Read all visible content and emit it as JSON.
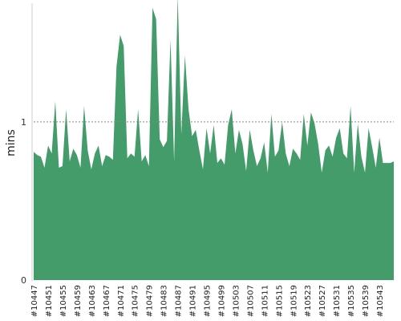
{
  "chart_data": {
    "type": "area",
    "xlabel": "",
    "ylabel": "mins",
    "ylim": [
      0,
      1.75
    ],
    "yticks": [
      0,
      1
    ],
    "reference_line": 1,
    "color": "#449c6a",
    "reference_line_color": "#888888",
    "x": [
      "#10447",
      "#10448",
      "#10449",
      "#10450",
      "#10451",
      "#10452",
      "#10453",
      "#10454",
      "#10455",
      "#10456",
      "#10457",
      "#10458",
      "#10459",
      "#10460",
      "#10461",
      "#10462",
      "#10463",
      "#10464",
      "#10465",
      "#10466",
      "#10467",
      "#10468",
      "#10469",
      "#10470",
      "#10471",
      "#10472",
      "#10473",
      "#10474",
      "#10475",
      "#10476",
      "#10477",
      "#10478",
      "#10479",
      "#10480",
      "#10481",
      "#10482",
      "#10483",
      "#10484",
      "#10485",
      "#10486",
      "#10487",
      "#10488",
      "#10489",
      "#10490",
      "#10491",
      "#10492",
      "#10493",
      "#10494",
      "#10495",
      "#10496",
      "#10497",
      "#10498",
      "#10499",
      "#10500",
      "#10501",
      "#10502",
      "#10503",
      "#10504",
      "#10505",
      "#10506",
      "#10507",
      "#10508",
      "#10509",
      "#10510",
      "#10511",
      "#10512",
      "#10513",
      "#10514",
      "#10515",
      "#10516",
      "#10517",
      "#10518",
      "#10519",
      "#10520",
      "#10521",
      "#10522",
      "#10523",
      "#10524",
      "#10525",
      "#10526",
      "#10527",
      "#10528",
      "#10529",
      "#10530",
      "#10531",
      "#10532",
      "#10533",
      "#10534",
      "#10535",
      "#10536",
      "#10537",
      "#10538",
      "#10539",
      "#10540",
      "#10541",
      "#10542",
      "#10543",
      "#10544",
      "#10545",
      "#10546",
      "#10547"
    ],
    "x_tick_labels": [
      "#10447",
      "#10451",
      "#10455",
      "#10459",
      "#10463",
      "#10467",
      "#10471",
      "#10475",
      "#10479",
      "#10483",
      "#10487",
      "#10491",
      "#10495",
      "#10499",
      "#10503",
      "#10507",
      "#10511",
      "#10515",
      "#10519",
      "#10523",
      "#10527",
      "#10531",
      "#10535",
      "#10539",
      "#10543"
    ],
    "values": [
      0.81,
      0.79,
      0.78,
      0.71,
      0.85,
      0.8,
      1.13,
      0.71,
      0.72,
      1.08,
      0.75,
      0.83,
      0.79,
      0.71,
      1.1,
      0.82,
      0.7,
      0.8,
      0.85,
      0.72,
      0.79,
      0.78,
      0.76,
      1.35,
      1.55,
      1.48,
      0.77,
      0.8,
      0.78,
      1.08,
      0.75,
      0.79,
      0.72,
      1.72,
      1.65,
      0.89,
      0.84,
      0.88,
      1.52,
      0.75,
      1.8,
      0.92,
      1.42,
      1.08,
      0.91,
      0.95,
      0.82,
      0.7,
      0.96,
      0.8,
      0.98,
      0.74,
      0.77,
      0.73,
      0.98,
      1.08,
      0.8,
      0.95,
      0.86,
      0.69,
      0.95,
      0.82,
      0.72,
      0.77,
      0.87,
      0.68,
      1.05,
      0.78,
      0.82,
      1.0,
      0.8,
      0.72,
      0.83,
      0.8,
      0.76,
      1.05,
      0.85,
      1.06,
      0.99,
      0.86,
      0.68,
      0.82,
      0.85,
      0.78,
      0.9,
      0.96,
      0.8,
      0.77,
      1.1,
      0.68,
      0.99,
      0.78,
      0.68,
      0.96,
      0.84,
      0.71,
      0.9,
      0.74,
      0.74,
      0.74,
      0.75
    ]
  }
}
